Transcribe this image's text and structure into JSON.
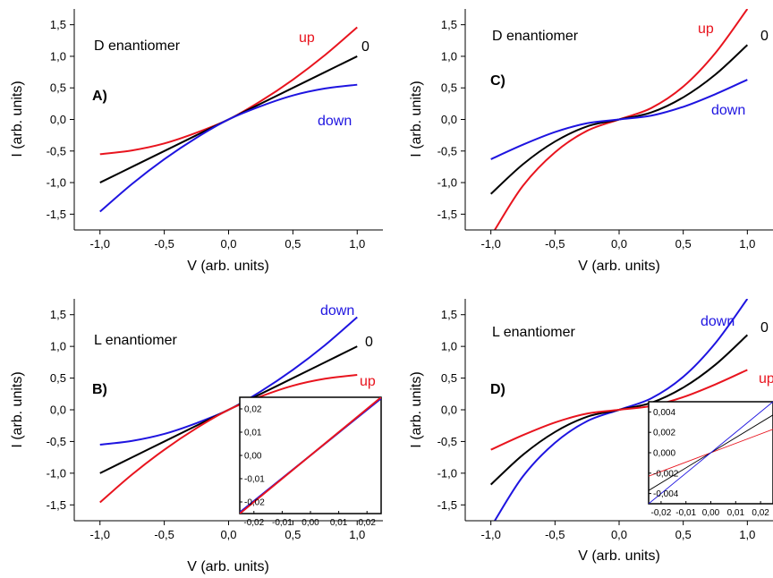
{
  "chart_data": [
    {
      "type": "line",
      "panel": "A)",
      "label": "D enantiomer",
      "xlabel": "V (arb. units)",
      "ylabel": "I (arb. units)",
      "xlim": [
        -1.2,
        1.2
      ],
      "ylim": [
        -1.75,
        1.75
      ],
      "xticks": [
        "-1,0",
        "-0,5",
        "0,0",
        "0,5",
        "1,0"
      ],
      "xtick_values": [
        -1,
        -0.5,
        0,
        0.5,
        1
      ],
      "yticks": [
        "-1,5",
        "-1,0",
        "-0,5",
        "0,0",
        "0,5",
        "1,0",
        "1,5"
      ],
      "ytick_values": [
        -1.5,
        -1,
        -0.5,
        0,
        0.5,
        1,
        1.5
      ],
      "series": [
        {
          "name": "up",
          "color": "#e8141e",
          "x": [
            -1.0,
            -0.75,
            -0.5,
            -0.25,
            0.0,
            0.25,
            0.5,
            0.75,
            1.0
          ],
          "y": [
            -0.55,
            -0.49,
            -0.38,
            -0.21,
            0.0,
            0.29,
            0.63,
            1.02,
            1.46
          ]
        },
        {
          "name": "0",
          "color": "#000000",
          "x": [
            -1.0,
            -0.75,
            -0.5,
            -0.25,
            0.0,
            0.25,
            0.5,
            0.75,
            1.0
          ],
          "y": [
            -1.0,
            -0.75,
            -0.5,
            -0.25,
            0.0,
            0.25,
            0.5,
            0.75,
            1.0
          ]
        },
        {
          "name": "down",
          "color": "#1e14e0",
          "x": [
            -1.0,
            -0.75,
            -0.5,
            -0.25,
            0.0,
            0.25,
            0.5,
            0.75,
            1.0
          ],
          "y": [
            -1.46,
            -1.02,
            -0.63,
            -0.29,
            0.0,
            0.21,
            0.38,
            0.49,
            0.55
          ]
        }
      ]
    },
    {
      "type": "line",
      "panel": "C)",
      "label": "D enantiomer",
      "xlabel": "V (arb. units)",
      "ylabel": "I (arb. units)",
      "xlim": [
        -1.2,
        1.2
      ],
      "ylim": [
        -1.75,
        1.75
      ],
      "xticks": [
        "-1,0",
        "-0,5",
        "0,0",
        "0,5",
        "1,0"
      ],
      "xtick_values": [
        -1,
        -0.5,
        0,
        0.5,
        1
      ],
      "yticks": [
        "-1,5",
        "-1,0",
        "-0,5",
        "0,0",
        "0,5",
        "1,0",
        "1,5"
      ],
      "ytick_values": [
        -1.5,
        -1,
        -0.5,
        0,
        0.5,
        1,
        1.5
      ],
      "series": [
        {
          "name": "up",
          "color": "#e8141e",
          "x": [
            -0.97,
            -0.75,
            -0.5,
            -0.25,
            0.0,
            0.25,
            0.5,
            0.75,
            1.0
          ],
          "y": [
            -1.75,
            -1.05,
            -0.52,
            -0.18,
            0.0,
            0.18,
            0.52,
            1.05,
            1.75
          ]
        },
        {
          "name": "0",
          "color": "#000000",
          "x": [
            -1.0,
            -0.75,
            -0.5,
            -0.25,
            0.0,
            0.25,
            0.5,
            0.75,
            1.0
          ],
          "y": [
            -1.18,
            -0.71,
            -0.35,
            -0.11,
            0.0,
            0.11,
            0.35,
            0.71,
            1.18
          ]
        },
        {
          "name": "down",
          "color": "#1e14e0",
          "x": [
            -1.0,
            -0.75,
            -0.5,
            -0.25,
            0.0,
            0.25,
            0.5,
            0.75,
            1.0
          ],
          "y": [
            -0.63,
            -0.4,
            -0.2,
            -0.06,
            0.0,
            0.06,
            0.2,
            0.4,
            0.63
          ]
        }
      ]
    },
    {
      "type": "line",
      "panel": "B)",
      "label": "L enantiomer",
      "xlabel": "V (arb. units)",
      "ylabel": "I (arb. units)",
      "xlim": [
        -1.2,
        1.2
      ],
      "ylim": [
        -1.75,
        1.75
      ],
      "xticks": [
        "-1,0",
        "-0,5",
        "0,0",
        "0,5",
        "1,0"
      ],
      "xtick_values": [
        -1,
        -0.5,
        0,
        0.5,
        1
      ],
      "yticks": [
        "-1,5",
        "-1,0",
        "-0,5",
        "0,0",
        "0,5",
        "1,0",
        "1,5"
      ],
      "ytick_values": [
        -1.5,
        -1,
        -0.5,
        0,
        0.5,
        1,
        1.5
      ],
      "series": [
        {
          "name": "down",
          "color": "#1e14e0",
          "x": [
            -1.0,
            -0.75,
            -0.5,
            -0.25,
            0.0,
            0.25,
            0.5,
            0.75,
            1.0
          ],
          "y": [
            -0.55,
            -0.49,
            -0.38,
            -0.21,
            0.0,
            0.29,
            0.63,
            1.02,
            1.46
          ]
        },
        {
          "name": "0",
          "color": "#000000",
          "x": [
            -1.0,
            -0.75,
            -0.5,
            -0.25,
            0.0,
            0.25,
            0.5,
            0.75,
            1.0
          ],
          "y": [
            -1.0,
            -0.75,
            -0.5,
            -0.25,
            0.0,
            0.25,
            0.5,
            0.75,
            1.0
          ]
        },
        {
          "name": "up",
          "color": "#e8141e",
          "x": [
            -1.0,
            -0.75,
            -0.5,
            -0.25,
            0.0,
            0.25,
            0.5,
            0.75,
            1.0
          ],
          "y": [
            -1.46,
            -1.02,
            -0.63,
            -0.29,
            0.0,
            0.21,
            0.38,
            0.49,
            0.55
          ]
        }
      ],
      "inset": {
        "xlim": [
          -0.025,
          0.025
        ],
        "ylim": [
          -0.025,
          0.025
        ],
        "xticks": [
          "-0,02",
          "-0,01",
          "0,00",
          "0,01",
          "0,02"
        ],
        "xtick_values": [
          -0.02,
          -0.01,
          0,
          0.01,
          0.02
        ],
        "yticks": [
          "-0,02",
          "-0,01",
          "0,00",
          "0,01",
          "0,02"
        ],
        "ytick_values": [
          -0.02,
          -0.01,
          0,
          0.01,
          0.02
        ],
        "series": [
          {
            "color": "#1e14e0",
            "x": [
              -0.025,
              0.025
            ],
            "y": [
              -0.0245,
              0.0245
            ]
          },
          {
            "color": "#e8141e",
            "x": [
              -0.025,
              0.025
            ],
            "y": [
              -0.025,
              0.025
            ]
          }
        ]
      }
    },
    {
      "type": "line",
      "panel": "D)",
      "label": "L enantiomer",
      "xlabel": "V (arb. units)",
      "ylabel": "I (arb. units)",
      "xlim": [
        -1.2,
        1.2
      ],
      "ylim": [
        -1.75,
        1.75
      ],
      "xticks": [
        "-1,0",
        "-0,5",
        "0,0",
        "0,5",
        "1,0"
      ],
      "xtick_values": [
        -1,
        -0.5,
        0,
        0.5,
        1
      ],
      "yticks": [
        "-1,5",
        "-1,0",
        "-0,5",
        "0,0",
        "0,5",
        "1,0",
        "1,5"
      ],
      "ytick_values": [
        -1.5,
        -1,
        -0.5,
        0,
        0.5,
        1,
        1.5
      ],
      "series": [
        {
          "name": "down",
          "color": "#1e14e0",
          "x": [
            -0.97,
            -0.75,
            -0.5,
            -0.25,
            0.0,
            0.25,
            0.5,
            0.75,
            1.0
          ],
          "y": [
            -1.75,
            -1.05,
            -0.52,
            -0.18,
            0.0,
            0.18,
            0.52,
            1.05,
            1.75
          ]
        },
        {
          "name": "0",
          "color": "#000000",
          "x": [
            -1.0,
            -0.75,
            -0.5,
            -0.25,
            0.0,
            0.25,
            0.5,
            0.75,
            1.0
          ],
          "y": [
            -1.18,
            -0.71,
            -0.35,
            -0.11,
            0.0,
            0.11,
            0.35,
            0.71,
            1.18
          ]
        },
        {
          "name": "up",
          "color": "#e8141e",
          "x": [
            -1.0,
            -0.75,
            -0.5,
            -0.25,
            0.0,
            0.25,
            0.5,
            0.75,
            1.0
          ],
          "y": [
            -0.63,
            -0.4,
            -0.2,
            -0.06,
            0.0,
            0.06,
            0.2,
            0.4,
            0.63
          ]
        }
      ],
      "inset": {
        "xlim": [
          -0.025,
          0.025
        ],
        "ylim": [
          -0.005,
          0.005
        ],
        "xticks": [
          "-0,02",
          "-0,01",
          "0,00",
          "0,01",
          "0,02"
        ],
        "xtick_values": [
          -0.02,
          -0.01,
          0,
          0.01,
          0.02
        ],
        "yticks": [
          "-0,004",
          "-0,002",
          "0,000",
          "0,002",
          "0,004"
        ],
        "ytick_values": [
          -0.004,
          -0.002,
          0,
          0.002,
          0.004
        ],
        "series": [
          {
            "color": "#e8141e",
            "x": [
              -0.025,
              0.025
            ],
            "y": [
              -0.0023,
              0.0023
            ]
          },
          {
            "color": "#000000",
            "x": [
              -0.025,
              0.025
            ],
            "y": [
              -0.0037,
              0.0037
            ]
          },
          {
            "color": "#1e14e0",
            "x": [
              -0.025,
              0.025
            ],
            "y": [
              -0.005,
              0.005
            ]
          }
        ]
      }
    }
  ]
}
